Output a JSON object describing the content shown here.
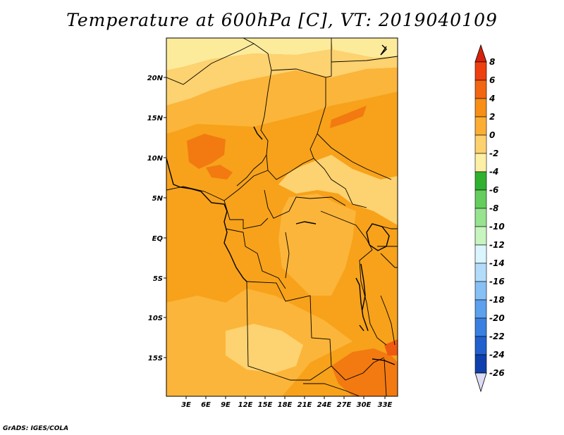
{
  "title": "Temperature at 600hPa [C], VT: 2019040109",
  "credit": "GrADS: IGES/COLA",
  "map": {
    "lat_labels": [
      "20N",
      "15N",
      "10N",
      "5N",
      "EQ",
      "5S",
      "10S",
      "15S"
    ],
    "lon_labels": [
      "3E",
      "6E",
      "9E",
      "12E",
      "15E",
      "18E",
      "21E",
      "24E",
      "27E",
      "30E",
      "33E"
    ],
    "colors": {
      "warm_light": "#fdd270",
      "warm_mid": "#fbb53a",
      "warm_main": "#f7a21a",
      "warm_strong": "#f27a11",
      "pale": "#fdeb9c"
    }
  },
  "colorbar": {
    "labels": [
      "8",
      "6",
      "4",
      "2",
      "0",
      "-2",
      "-4",
      "-6",
      "-8",
      "-10",
      "-12",
      "-14",
      "-16",
      "-18",
      "-20",
      "-22",
      "-24",
      "-26"
    ],
    "colors": [
      "#ee3f10",
      "#f26512",
      "#f78e16",
      "#fbae33",
      "#fdd16f",
      "#fdf0a6",
      "#2fb12f",
      "#64cd5d",
      "#97e38e",
      "#c8f4c0",
      "#daf5ff",
      "#b3dcfb",
      "#86c0f5",
      "#5ca0ee",
      "#3a80e0",
      "#2160cd",
      "#0f3fac",
      "#0a1c6e",
      "#08004a"
    ],
    "top_arrow_color": "#d6220c",
    "bottom_arrow_color": "#dcdcf5"
  }
}
